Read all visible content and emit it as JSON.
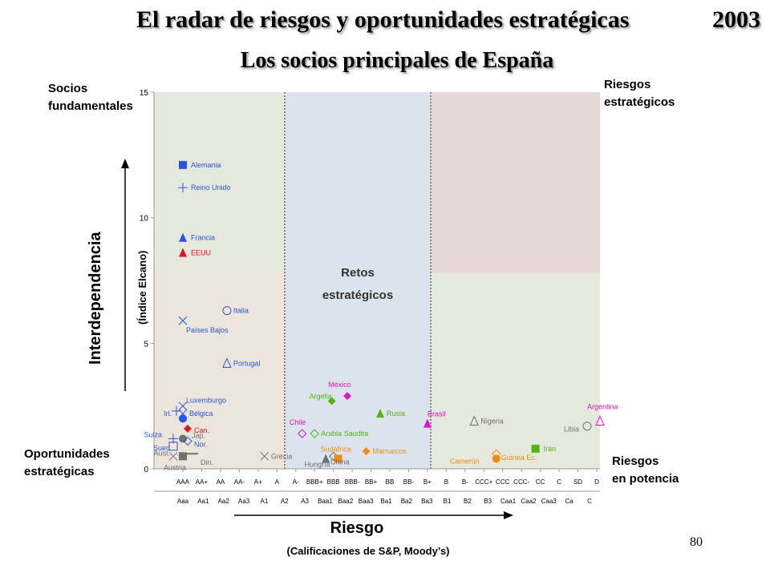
{
  "header": {
    "title": "El radar de riesgos y oportunidades estratégicas",
    "year": "2003",
    "subtitle": "Los socios principales de España"
  },
  "corners": {
    "top_left": [
      "Socios",
      "fundamentales"
    ],
    "top_right": [
      "Riesgos",
      "estratégicos"
    ],
    "bottom_left": [
      "Oportunidades",
      "estratégicas"
    ],
    "bottom_right": [
      "Riesgos",
      "en potencia"
    ],
    "center": [
      "Retos",
      "estratégicos"
    ]
  },
  "page_number": "80",
  "colors": {
    "blue": "#2b55e0",
    "red": "#e0141e",
    "green": "#55b414",
    "magenta": "#e014c8",
    "orange": "#f08c14",
    "gray": "#707070",
    "zone_green": "#e5e8dc",
    "zone_tan": "#ebe5dc",
    "zone_blue": "#dbe3ec",
    "zone_pink": "#e6d7d7"
  },
  "chart_data": {
    "type": "scatter",
    "title": "El radar de riesgos y oportunidades estratégicas",
    "ylabel": "Interdependencia",
    "ylabel_sub": "(Índice Elcano)",
    "xlabel": "Riesgo",
    "xlabel_sub": "(Calificaciones de S&P, Moody’s)",
    "ylim": [
      0,
      15
    ],
    "yticks": [
      0,
      5,
      10,
      15
    ],
    "x_categories_sp": [
      "AAA",
      "AA+",
      "AA",
      "AA-",
      "A+",
      "A",
      "A-",
      "BBB+",
      "BBB",
      "BBB-",
      "BB+",
      "BB",
      "BB-",
      "B+",
      "B",
      "B-",
      "CCC+",
      "CCC",
      "CCC-",
      "CC",
      "C",
      "SD",
      "D"
    ],
    "x_categories_moodys": [
      "Aaa",
      "Aa1",
      "Aa2",
      "Aa3",
      "A1",
      "A2",
      "A3",
      "Baa1",
      "Baa2",
      "Baa3",
      "Ba1",
      "Ba2",
      "Ba3",
      "B1",
      "B2",
      "B3",
      "Caa1",
      "Caa2",
      "Caa3",
      "Ca",
      "C"
    ],
    "grid": false,
    "points": [
      {
        "label": "Alemania",
        "x": "AAA",
        "y": 12.1,
        "color": "blue",
        "marker": "square"
      },
      {
        "label": "Reino Unido",
        "x": "AAA",
        "y": 11.2,
        "color": "blue",
        "marker": "plus"
      },
      {
        "label": "Francia",
        "x": "AAA",
        "y": 9.2,
        "color": "blue",
        "marker": "triangle"
      },
      {
        "label": "EEUU",
        "x": "AAA",
        "y": 8.6,
        "color": "red",
        "marker": "triangle"
      },
      {
        "label": "Italia",
        "x": "AA",
        "y": 6.3,
        "color": "blue",
        "marker": "circle-open"
      },
      {
        "label": "Países Bajos",
        "x": "AAA",
        "y": 5.9,
        "color": "blue",
        "marker": "x"
      },
      {
        "label": "Portugal",
        "x": "AA",
        "y": 4.2,
        "color": "blue",
        "marker": "triangle-open"
      },
      {
        "label": "Luxemburgo",
        "x": "AAA",
        "y": 2.5,
        "color": "blue",
        "marker": "x"
      },
      {
        "label": "Irl.",
        "x": "AAA",
        "y": 2.3,
        "color": "blue",
        "marker": "plus"
      },
      {
        "label": "Bélgica",
        "x": "AAA",
        "y": 2.2,
        "color": "blue",
        "marker": "x"
      },
      {
        "label": "",
        "x": "AAA",
        "y": 2.0,
        "color": "blue",
        "marker": "circle"
      },
      {
        "label": "Can.",
        "x": "AAA",
        "y": 1.6,
        "color": "red",
        "marker": "diamond"
      },
      {
        "label": "Jap.",
        "x": "AAA",
        "y": 1.2,
        "color": "gray",
        "marker": "circle"
      },
      {
        "label": "Nor.",
        "x": "AAA",
        "y": 1.1,
        "color": "blue",
        "marker": "diamond-open"
      },
      {
        "label": "Suiza",
        "x": "AAA",
        "y": 1.2,
        "color": "blue",
        "marker": "plus"
      },
      {
        "label": "Suec.",
        "x": "AAA",
        "y": 0.9,
        "color": "blue",
        "marker": "square-open"
      },
      {
        "label": "Aust.",
        "x": "AAA",
        "y": 0.5,
        "color": "gray",
        "marker": "x"
      },
      {
        "label": "Austria",
        "x": "AAA",
        "y": 0.5,
        "color": "gray",
        "marker": "square"
      },
      {
        "label": "Din.",
        "x": "AAA",
        "y": 0.6,
        "color": "gray",
        "marker": "dash"
      },
      {
        "label": "Grecia",
        "x": "A+",
        "y": 0.5,
        "color": "gray",
        "marker": "x"
      },
      {
        "label": "Chile",
        "x": "A-",
        "y": 1.4,
        "color": "magenta",
        "marker": "diamond-open"
      },
      {
        "label": "Arabia Saudita",
        "x": "BBB+",
        "y": 1.4,
        "color": "green",
        "marker": "diamond-open"
      },
      {
        "label": "Hungría",
        "x": "BBB",
        "y": 0.5,
        "color": "gray",
        "marker": "diamond-open"
      },
      {
        "label": "Argelia",
        "x": "BBB",
        "y": 2.7,
        "color": "green",
        "marker": "diamond"
      },
      {
        "label": "México",
        "x": "BBB-",
        "y": 2.9,
        "color": "magenta",
        "marker": "diamond"
      },
      {
        "label": "Sudáfrica",
        "x": "BBB",
        "y": 0.4,
        "color": "orange",
        "marker": "square"
      },
      {
        "label": "Marruecos",
        "x": "BB+",
        "y": 0.7,
        "color": "orange",
        "marker": "diamond"
      },
      {
        "label": "China",
        "x": "BBB+",
        "y": 0.4,
        "color": "gray",
        "marker": "triangle"
      },
      {
        "label": "Rusia",
        "x": "BB",
        "y": 2.2,
        "color": "green",
        "marker": "triangle"
      },
      {
        "label": "Brasil",
        "x": "B+",
        "y": 1.8,
        "color": "magenta",
        "marker": "triangle"
      },
      {
        "label": "Nigeria",
        "x": "CCC+",
        "y": 1.9,
        "color": "gray",
        "marker": "triangle-open"
      },
      {
        "label": "Camerún",
        "x": "CCC",
        "y": 0.4,
        "color": "orange",
        "marker": "circle"
      },
      {
        "label": "Guinea Ec.",
        "x": "CCC",
        "y": 0.6,
        "color": "orange",
        "marker": "diamond-open"
      },
      {
        "label": "Irán",
        "x": "CC",
        "y": 0.8,
        "color": "green",
        "marker": "square"
      },
      {
        "label": "Libia",
        "x": "D",
        "y": 1.7,
        "color": "gray",
        "marker": "circle-open"
      },
      {
        "label": "Argentina",
        "x": "D",
        "y": 1.9,
        "color": "magenta",
        "marker": "triangle-open"
      }
    ]
  }
}
